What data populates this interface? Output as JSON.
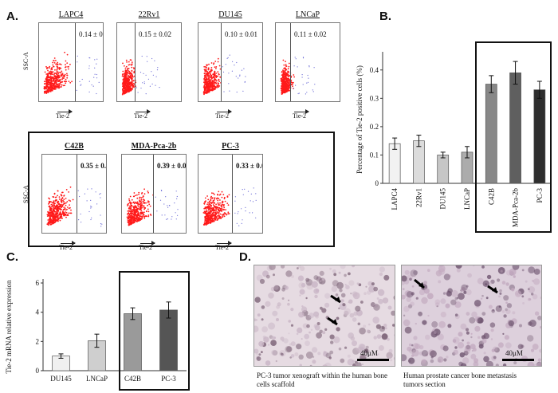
{
  "panels": {
    "a": "A.",
    "b": "B.",
    "c": "C.",
    "d": "D."
  },
  "flow": {
    "y_label": "SSC-A",
    "x_label": "Tie-2",
    "plots": [
      {
        "name": "LAPC4",
        "value": "0.14 ± 0.02",
        "bold": false
      },
      {
        "name": "22Rv1",
        "value": "0.15 ± 0.02",
        "bold": false
      },
      {
        "name": "DU145",
        "value": "0.10 ± 0.01",
        "bold": false
      },
      {
        "name": "LNCaP",
        "value": "0.11 ± 0.02",
        "bold": false
      },
      {
        "name": "C42B",
        "value": "0.35 ± 0.03",
        "bold": true
      },
      {
        "name": "MDA-Pca-2b",
        "value": "0.39 ± 0.04",
        "bold": true
      },
      {
        "name": "PC-3",
        "value": "0.33 ± 0.03",
        "bold": true
      }
    ]
  },
  "chart_data": [
    {
      "type": "bar",
      "panel": "B",
      "ylabel": "Percentage of Tie-2 positive cells (%)",
      "categories": [
        "LAPC4",
        "22Rv1",
        "DU145",
        "LNCaP",
        "C42B",
        "MDA-Pca-2b",
        "PC-3"
      ],
      "values": [
        0.14,
        0.15,
        0.1,
        0.11,
        0.35,
        0.39,
        0.33
      ],
      "errors": [
        0.02,
        0.02,
        0.01,
        0.02,
        0.03,
        0.04,
        0.03
      ],
      "colors": [
        "#f2f2f2",
        "#dcdcdc",
        "#c6c6c6",
        "#acacac",
        "#888888",
        "#5f5f5f",
        "#2e2e2e"
      ],
      "yticks": [
        "0",
        "0.1",
        "0.2",
        "0.3",
        "0.4"
      ],
      "ylim": [
        0,
        0.45
      ]
    },
    {
      "type": "bar",
      "panel": "C",
      "ylabel": "Tie-2 mRNA relative expression",
      "categories": [
        "DU145",
        "LNCaP",
        "C42B",
        "PC-3"
      ],
      "values": [
        1.0,
        2.05,
        3.9,
        4.15
      ],
      "errors": [
        0.15,
        0.45,
        0.4,
        0.55
      ],
      "colors": [
        "#f0f0f0",
        "#cfcfcf",
        "#9a9a9a",
        "#555555"
      ],
      "yticks": [
        "0",
        "2",
        "4",
        "6"
      ],
      "ylim": [
        0,
        6
      ]
    }
  ],
  "micrographs": [
    {
      "caption": "PC-3  tumor xenograft within the human bone cells scaffold",
      "scale": "40μM"
    },
    {
      "caption": "Human prostate cancer bone metastasis tumors section",
      "scale": "40μM"
    }
  ]
}
